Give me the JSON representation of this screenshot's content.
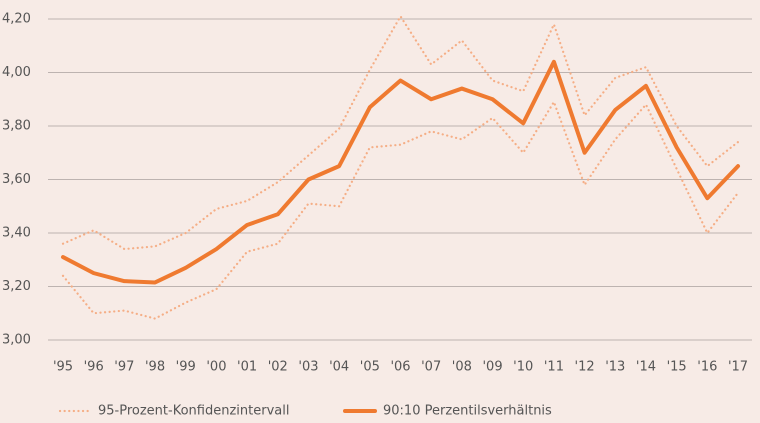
{
  "chart_data": {
    "type": "line",
    "categories": [
      "'95",
      "'96",
      "'97",
      "'98",
      "'99",
      "'00",
      "'01",
      "'02",
      "'03",
      "'04",
      "'05",
      "'06",
      "'07",
      "'08",
      "'09",
      "'10",
      "'11",
      "'12",
      "'13",
      "'14",
      "'15",
      "'16",
      "'17"
    ],
    "series": [
      {
        "name": "95-Prozent-Konfidenzintervall",
        "color": "#f5ae86",
        "style": "dotted",
        "upper": [
          3.36,
          3.41,
          3.34,
          3.35,
          3.4,
          3.49,
          3.52,
          3.59,
          3.69,
          3.79,
          4.01,
          4.21,
          4.03,
          4.12,
          3.97,
          3.93,
          4.18,
          3.84,
          3.98,
          4.02,
          3.8,
          3.65,
          3.74
        ],
        "lower": [
          3.24,
          3.1,
          3.11,
          3.08,
          3.14,
          3.19,
          3.33,
          3.36,
          3.51,
          3.5,
          3.72,
          3.73,
          3.78,
          3.75,
          3.83,
          3.7,
          3.89,
          3.58,
          3.75,
          3.88,
          3.64,
          3.4,
          3.55
        ]
      },
      {
        "name": "90:10 Perzentilsverhältnis",
        "color": "#ef7a30",
        "style": "solid",
        "values": [
          3.31,
          3.25,
          3.22,
          3.215,
          3.27,
          3.34,
          3.43,
          3.47,
          3.6,
          3.65,
          3.87,
          3.97,
          3.9,
          3.94,
          3.9,
          3.81,
          4.04,
          3.7,
          3.86,
          3.95,
          3.72,
          3.53,
          3.65
        ]
      }
    ],
    "ylim": [
      3.0,
      4.2
    ],
    "yticks": [
      {
        "value": 3.0,
        "label": "3,00"
      },
      {
        "value": 3.2,
        "label": "3,20"
      },
      {
        "value": 3.4,
        "label": "3,40"
      },
      {
        "value": 3.6,
        "label": "3,60"
      },
      {
        "value": 3.8,
        "label": "3,80"
      },
      {
        "value": 4.0,
        "label": "4,00"
      },
      {
        "value": 4.2,
        "label": "4,20"
      }
    ],
    "grid": true
  }
}
